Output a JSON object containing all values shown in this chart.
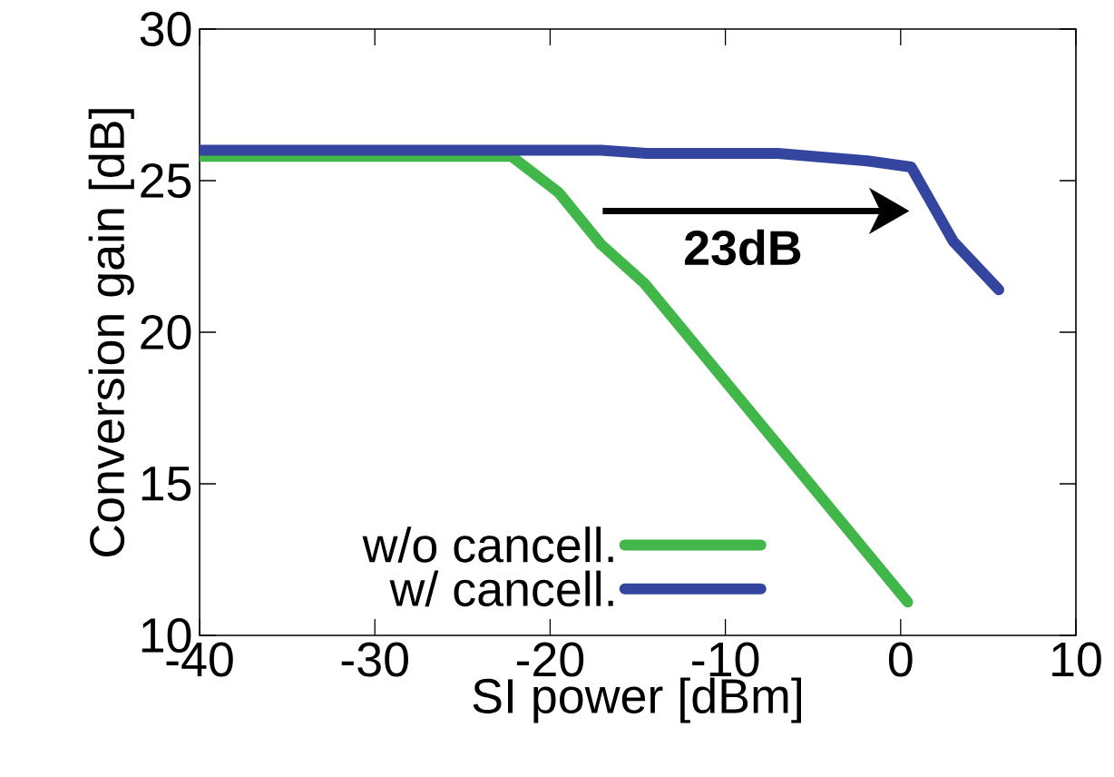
{
  "chart_data": {
    "type": "line",
    "xlabel": "SI power [dBm]",
    "ylabel": "Conversion gain [dB]",
    "xlim": [
      -40,
      10
    ],
    "ylim": [
      10,
      30
    ],
    "xticks": [
      -40,
      -30,
      -20,
      -10,
      0,
      10
    ],
    "yticks": [
      10,
      15,
      20,
      25,
      30
    ],
    "legend": "bottom",
    "marker": "none",
    "line_style": "solid",
    "annotations": [
      "23dB"
    ],
    "series": [
      {
        "name": "w/o cancell.",
        "color": "#41b649",
        "x": [
          -40,
          -22.2,
          -19.5,
          -17.1,
          -14.6,
          0.4
        ],
        "values": [
          25.8,
          25.8,
          24.6,
          22.9,
          21.6,
          11.1
        ]
      },
      {
        "name": "w/ cancell.",
        "color": "#33459e",
        "x": [
          -40,
          -17.1,
          -14.5,
          -7.0,
          -1.9,
          0.6,
          3.0,
          5.6
        ],
        "values": [
          26.0,
          26.0,
          25.9,
          25.9,
          25.65,
          25.45,
          23.0,
          21.4
        ]
      }
    ]
  }
}
